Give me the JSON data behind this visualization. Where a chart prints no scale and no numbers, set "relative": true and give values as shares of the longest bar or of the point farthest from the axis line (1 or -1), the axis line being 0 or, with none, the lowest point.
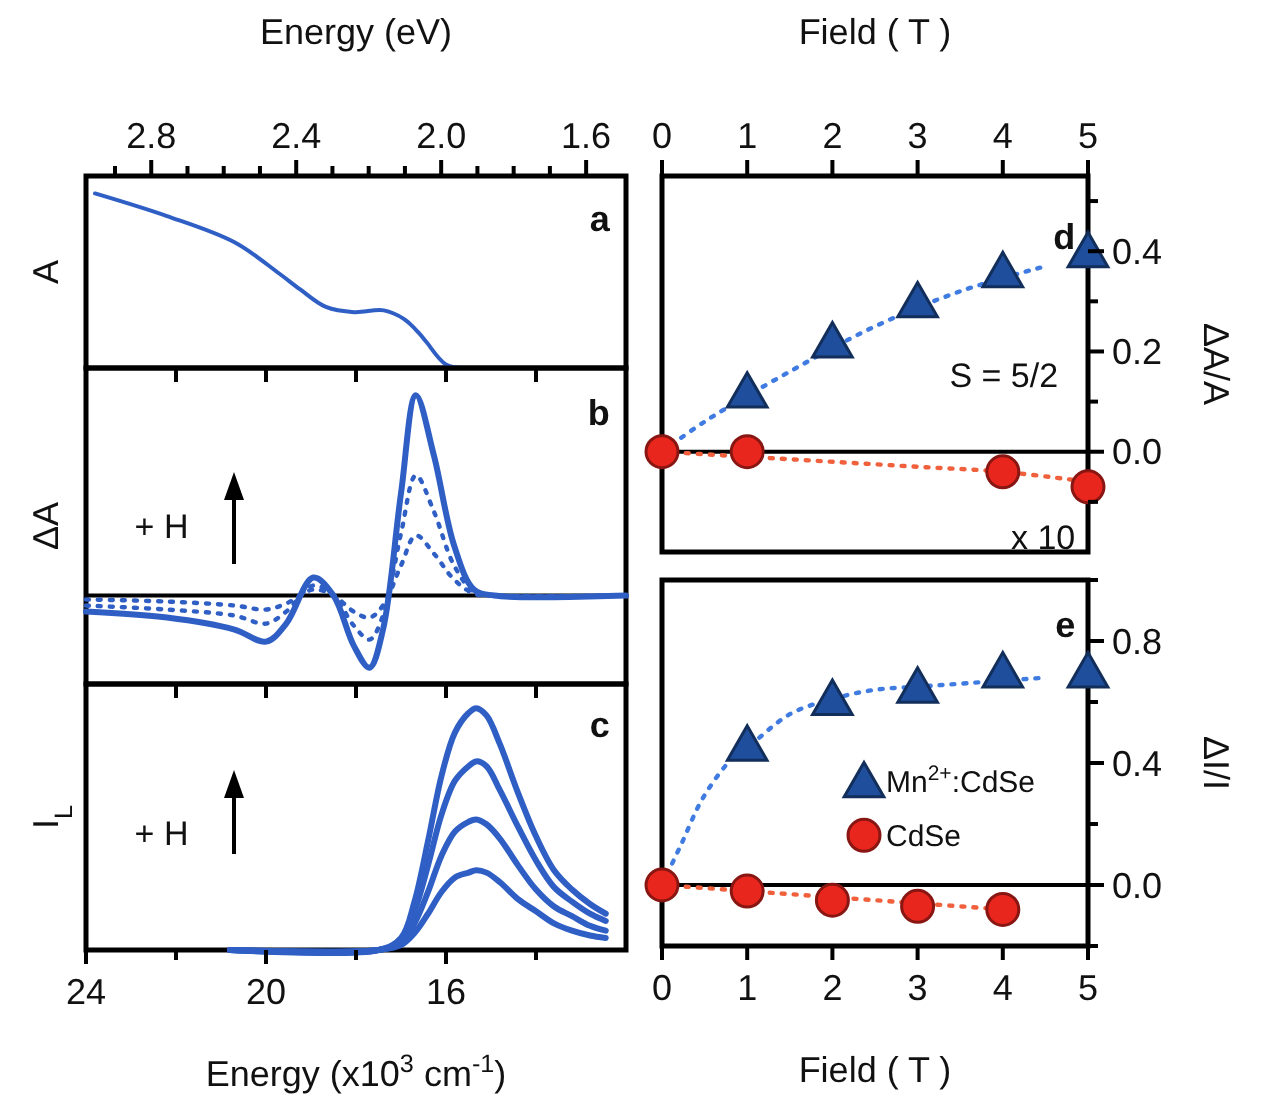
{
  "chart_data": [
    {
      "type": "line",
      "relative": true,
      "ylabel": "A",
      "x2label": "Energy (eV)",
      "xlim": [
        24,
        12
      ],
      "xticks": [
        24,
        22,
        20,
        18,
        16,
        14
      ],
      "x2lim": [
        2.98,
        1.49
      ],
      "x2ticks": [
        {
          "value": 2.9,
          "label": null
        },
        2.8,
        {
          "value": 2.7,
          "label": null
        },
        {
          "value": 2.6,
          "label": null
        },
        {
          "value": 2.5,
          "label": null
        },
        2.4,
        {
          "value": 2.3,
          "label": null
        },
        {
          "value": 2.2,
          "label": null
        },
        {
          "value": 2.1,
          "label": null
        },
        {
          "value": 2.0,
          "label": "2.0"
        },
        {
          "value": 1.9,
          "label": null
        },
        {
          "value": 1.8,
          "label": null
        },
        {
          "value": 1.7,
          "label": null
        },
        1.6
      ],
      "tick_labels": false,
      "annotations": [
        "a"
      ],
      "series": [
        {
          "color": "#2f5fc4",
          "x": [
            23.8,
            22.2,
            20.7,
            19.7,
            19.24,
            18.67,
            18.04,
            17.38,
            16.93,
            16.6,
            16.44,
            16.0,
            15.56
          ],
          "values": [
            1,
            0.87,
            0.72,
            0.54,
            0.45,
            0.35,
            0.32,
            0.33,
            0.28,
            0.2,
            0.15,
            0.02,
            0
          ]
        }
      ]
    },
    {
      "type": "line",
      "relative": true,
      "ylabel": "ΔA",
      "xlim": [
        24,
        12
      ],
      "xticks": [
        24,
        22,
        20,
        18,
        16,
        14
      ],
      "tick_labels": false,
      "annotations": [
        "b",
        "+ H"
      ],
      "ref_lines": [
        {
          "axis": "y",
          "value": 0
        }
      ],
      "series": [
        {
          "color": "#2f5fc4",
          "line_style": "dotted",
          "x": [
            24,
            22.2,
            20.7,
            20.0,
            19.55,
            18.95,
            18.5,
            18.05,
            17.7,
            17.4,
            17.0,
            16.67,
            16.27,
            15.82,
            15.38,
            14.93,
            12.0
          ],
          "values": [
            -0.02,
            -0.03,
            -0.05,
            -0.07,
            -0.04,
            0.03,
            0,
            -0.08,
            -0.11,
            -0.05,
            0.15,
            0.3,
            0.21,
            0.08,
            0.01,
            0,
            0
          ]
        },
        {
          "color": "#2f5fc4",
          "line_style": "dotted",
          "x": [
            24,
            22.2,
            20.7,
            20.0,
            19.55,
            18.95,
            18.5,
            18.05,
            17.7,
            17.4,
            17.0,
            16.67,
            16.27,
            15.82,
            15.38,
            14.93,
            12.0
          ],
          "values": [
            -0.05,
            -0.07,
            -0.1,
            -0.14,
            -0.08,
            0.05,
            0,
            -0.15,
            -0.22,
            -0.1,
            0.31,
            0.6,
            0.42,
            0.15,
            0.02,
            0,
            0
          ]
        },
        {
          "color": "#2f5fc4",
          "x": [
            24,
            22.2,
            20.7,
            20.0,
            19.55,
            18.95,
            18.5,
            18.05,
            17.7,
            17.4,
            17.0,
            16.67,
            16.27,
            15.82,
            15.38,
            14.93,
            12.0
          ],
          "values": [
            -0.08,
            -0.11,
            -0.17,
            -0.23,
            -0.14,
            0.09,
            0,
            -0.25,
            -0.36,
            -0.17,
            0.51,
            1,
            0.7,
            0.25,
            0.03,
            0,
            0
          ]
        }
      ]
    },
    {
      "type": "line",
      "relative": true,
      "ylabel": "I$_{L}$",
      "xlabel": "Energy (x10$^{3}$ cm$^{-1}$)",
      "xlim": [
        24,
        12
      ],
      "xticks": [
        24,
        {
          "value": 22,
          "label": null
        },
        20,
        {
          "value": 18,
          "label": null
        },
        16,
        {
          "value": 14,
          "label": null
        }
      ],
      "tick_labels": "x",
      "annotations": [
        "c",
        "+ H"
      ],
      "series": [
        {
          "color": "#2f5fc4",
          "x": [
            20.8,
            17.5,
            17.0,
            16.7,
            16.4,
            16.1,
            15.8,
            15.5,
            15.33,
            15.1,
            14.8,
            14.4,
            14.0,
            13.6,
            13.2,
            12.8,
            12.45
          ],
          "values": [
            0,
            0,
            0.02,
            0.07,
            0.15,
            0.24,
            0.3,
            0.32,
            0.33,
            0.32,
            0.28,
            0.21,
            0.16,
            0.11,
            0.08,
            0.06,
            0.05
          ]
        },
        {
          "color": "#2f5fc4",
          "x": [
            20.8,
            17.5,
            17.0,
            16.7,
            16.4,
            16.1,
            15.8,
            15.5,
            15.33,
            15.1,
            14.8,
            14.4,
            14.0,
            13.6,
            13.2,
            12.8,
            12.45
          ],
          "values": [
            0,
            0,
            0.03,
            0.11,
            0.24,
            0.39,
            0.49,
            0.53,
            0.54,
            0.52,
            0.46,
            0.35,
            0.25,
            0.18,
            0.14,
            0.1,
            0.08
          ]
        },
        {
          "color": "#2f5fc4",
          "x": [
            20.8,
            17.5,
            17.0,
            16.7,
            16.4,
            16.1,
            15.8,
            15.5,
            15.33,
            15.1,
            14.8,
            14.4,
            14.0,
            13.6,
            13.2,
            12.8,
            12.45
          ],
          "values": [
            0,
            0,
            0.04,
            0.16,
            0.35,
            0.56,
            0.7,
            0.76,
            0.78,
            0.76,
            0.66,
            0.51,
            0.37,
            0.26,
            0.2,
            0.15,
            0.12
          ]
        },
        {
          "color": "#2f5fc4",
          "x": [
            20.8,
            17.5,
            17.0,
            16.7,
            16.4,
            16.1,
            15.8,
            15.5,
            15.33,
            15.1,
            14.8,
            14.4,
            14.0,
            13.6,
            13.2,
            12.8,
            12.45
          ],
          "values": [
            0,
            0,
            0.05,
            0.2,
            0.45,
            0.72,
            0.9,
            0.98,
            1,
            0.97,
            0.85,
            0.65,
            0.47,
            0.33,
            0.25,
            0.19,
            0.15
          ]
        }
      ]
    },
    {
      "type": "scatter",
      "y2label": "ΔA/A",
      "x2label": "Field ( T )",
      "xlim": [
        0,
        5
      ],
      "x2lim": [
        0,
        5
      ],
      "x2ticks": [
        0,
        1,
        2,
        3,
        4,
        5
      ],
      "y2lim": [
        -0.2,
        0.55
      ],
      "y2ticks": [
        {
          "value": -0.1,
          "label": null
        },
        {
          "value": 0,
          "label": "0.0"
        },
        {
          "value": 0.1,
          "label": null
        },
        {
          "value": 0.2,
          "label": "0.2"
        },
        {
          "value": 0.3,
          "label": null
        },
        {
          "value": 0.4,
          "label": "0.4"
        },
        {
          "value": 0.5,
          "label": null
        }
      ],
      "tick_labels": false,
      "annotations": [
        "d",
        "S = 5/2",
        "x 10"
      ],
      "ref_lines": [
        {
          "axis": "y2",
          "value": 0
        }
      ],
      "series": [
        {
          "type": "line",
          "axis": "y2",
          "color": "#3f7be0",
          "line_style": "dotted",
          "x": [
            0,
            0.5,
            1.5,
            2.5,
            3.5,
            4.5
          ],
          "values": [
            0,
            0.06,
            0.16,
            0.25,
            0.32,
            0.37
          ]
        },
        {
          "type": "line",
          "axis": "y2",
          "color": "#f0603c",
          "line_style": "dotted",
          "x": [
            0,
            1,
            2,
            3,
            4,
            5
          ],
          "values": [
            0,
            -0.01,
            -0.02,
            -0.03,
            -0.04,
            -0.06
          ]
        },
        {
          "axis": "y2",
          "color": "#1f4e9c",
          "marker": "triangle",
          "x": [
            1,
            2,
            3,
            4,
            5
          ],
          "values": [
            0.12,
            0.22,
            0.3,
            0.36,
            0.4
          ]
        },
        {
          "axis": "y2",
          "color": "#e8261e",
          "marker": "circle",
          "x": [
            0,
            1,
            4,
            5
          ],
          "values": [
            0,
            0,
            -0.04,
            -0.07
          ]
        }
      ]
    },
    {
      "type": "scatter",
      "xlabel": "Field ( T )",
      "y2label": "ΔI/I",
      "xlim": [
        0,
        5
      ],
      "xticks": [
        0,
        1,
        2,
        3,
        4,
        5
      ],
      "y2lim": [
        -0.2,
        1.0
      ],
      "y2ticks": [
        {
          "value": -0.2,
          "label": null
        },
        {
          "value": 0,
          "label": "0.0"
        },
        {
          "value": 0.2,
          "label": null
        },
        {
          "value": 0.4,
          "label": "0.4"
        },
        {
          "value": 0.6,
          "label": null
        },
        {
          "value": 0.8,
          "label": "0.8"
        },
        {
          "value": 1.0,
          "label": null
        }
      ],
      "tick_labels": "x",
      "legend": "right",
      "annotations": [
        "e"
      ],
      "ref_lines": [
        {
          "axis": "y2",
          "value": 0
        }
      ],
      "series": [
        {
          "type": "line",
          "axis": "y2",
          "color": "#3f7be0",
          "line_style": "dotted",
          "x": [
            0,
            0.22,
            0.49,
            0.84,
            1,
            1.5,
            2,
            2.5,
            3,
            3.5,
            4.5
          ],
          "values": [
            0,
            0.13,
            0.29,
            0.42,
            0.45,
            0.56,
            0.61,
            0.64,
            0.65,
            0.66,
            0.68
          ]
        },
        {
          "type": "line",
          "axis": "y2",
          "color": "#f0603c",
          "line_style": "dotted",
          "x": [
            0,
            1,
            2,
            3,
            4
          ],
          "values": [
            0,
            -0.02,
            -0.04,
            -0.06,
            -0.08
          ]
        },
        {
          "name": "Mn$^{2+}$:CdSe",
          "axis": "y2",
          "color": "#1f4e9c",
          "marker": "triangle",
          "x": [
            1,
            2,
            3,
            4,
            5
          ],
          "values": [
            0.46,
            0.61,
            0.65,
            0.7,
            0.7
          ]
        },
        {
          "name": "CdSe",
          "axis": "y2",
          "color": "#e8261e",
          "marker": "circle",
          "x": [
            0,
            1,
            2,
            3,
            4
          ],
          "values": [
            0,
            -0.02,
            -0.05,
            -0.07,
            -0.08
          ]
        }
      ]
    }
  ]
}
